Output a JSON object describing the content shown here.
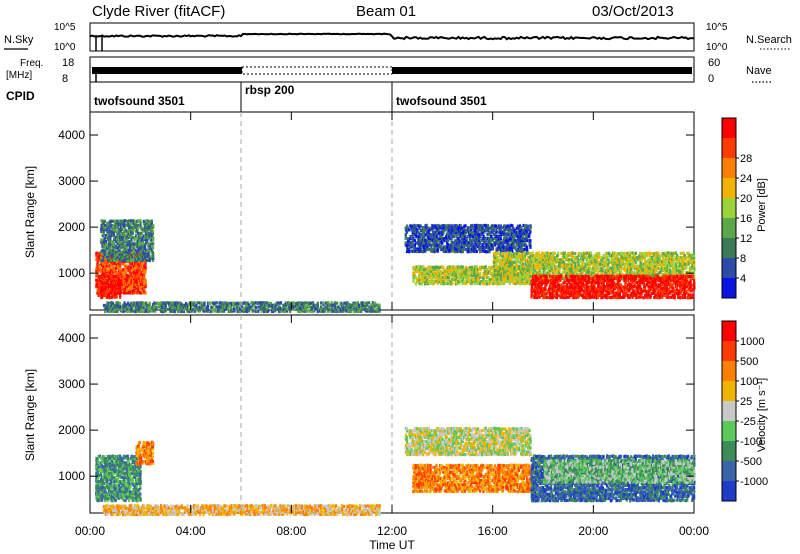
{
  "header": {
    "station": "Clyde River (fitACF)",
    "beam": "Beam 01",
    "date": "03/Oct/2013"
  },
  "noise_panel": {
    "left_label": "N.Sky",
    "right_label": "N.Search",
    "left_ticks": [
      "10^5",
      "10^0"
    ],
    "right_ticks": [
      "10^5",
      "10^0"
    ]
  },
  "freq_panel": {
    "left_label_line1": "Freq.",
    "left_label_line2": "[MHz]",
    "left_ticks": [
      "18",
      "8"
    ],
    "right_label": "Nave",
    "right_ticks": [
      "60",
      "0"
    ]
  },
  "cpid": {
    "label": "CPID",
    "segments": [
      {
        "name": "twofsound 3501",
        "start_hour": 0
      },
      {
        "name": "rbsp 200",
        "start_hour": 6
      },
      {
        "name": "twofsound 3501",
        "start_hour": 12
      }
    ]
  },
  "time_axis": {
    "label": "Time UT",
    "ticks": [
      "00:00",
      "04:00",
      "08:00",
      "12:00",
      "16:00",
      "20:00",
      "00:00"
    ],
    "hours": [
      0,
      4,
      8,
      12,
      16,
      20,
      24
    ]
  },
  "chart_data": [
    {
      "type": "heatmap",
      "name": "power",
      "ylabel": "Slant Range [km]",
      "yticks": [
        "1000",
        "2000",
        "3000",
        "4000"
      ],
      "ytick_values": [
        1000,
        2000,
        3000,
        4000
      ],
      "ylim": [
        200,
        4500
      ],
      "xlim": [
        0,
        24
      ],
      "colorbar_label": "Power [dB]",
      "colorbar_ticks": [
        "4",
        "8",
        "12",
        "16",
        "20",
        "24",
        "28"
      ],
      "colorbar_colors": [
        "#0a14e0",
        "#2c4aa8",
        "#3c7a5a",
        "#5aa84a",
        "#9ed23a",
        "#f0b400",
        "#ff8000",
        "#ff3c00",
        "#ff0000"
      ],
      "regions": [
        {
          "x": [
            0.2,
            2.2
          ],
          "y": [
            600,
            1500
          ],
          "level": 7
        },
        {
          "x": [
            0.3,
            1.2
          ],
          "y": [
            500,
            1000
          ],
          "level": 8
        },
        {
          "x": [
            0.4,
            2.5
          ],
          "y": [
            1300,
            2200
          ],
          "level": 2
        },
        {
          "x": [
            12.5,
            17.5
          ],
          "y": [
            1500,
            2100
          ],
          "level": 1
        },
        {
          "x": [
            12.8,
            17.5
          ],
          "y": [
            800,
            1200
          ],
          "level": 4
        },
        {
          "x": [
            16.0,
            24.0
          ],
          "y": [
            900,
            1500
          ],
          "level": 4
        },
        {
          "x": [
            17.5,
            24.0
          ],
          "y": [
            500,
            1000
          ],
          "level": 8
        },
        {
          "x": [
            0.5,
            11.5
          ],
          "y": [
            200,
            420
          ],
          "level": 2
        }
      ]
    },
    {
      "type": "heatmap",
      "name": "velocity",
      "ylabel": "Slant Range [km]",
      "yticks": [
        "1000",
        "2000",
        "3000",
        "4000"
      ],
      "ytick_values": [
        1000,
        2000,
        3000,
        4000
      ],
      "ylim": [
        200,
        4500
      ],
      "xlim": [
        0,
        24
      ],
      "colorbar_label": "Velocity [m s⁻¹]",
      "colorbar_ticks": [
        "1000",
        "500",
        "100",
        "25",
        "-25",
        "-100",
        "-500",
        "-1000"
      ],
      "colorbar_colors": [
        "#1e3cc8",
        "#3a64a8",
        "#3c8c5a",
        "#5cc85a",
        "#c8c8c8",
        "#f0b400",
        "#ff8000",
        "#ff3c00",
        "#ff0000"
      ],
      "regions": [
        {
          "x": [
            0.2,
            2.0
          ],
          "y": [
            500,
            1500
          ],
          "level": 2
        },
        {
          "x": [
            1.8,
            2.5
          ],
          "y": [
            1300,
            1800
          ],
          "level": 6
        },
        {
          "x": [
            12.5,
            17.5
          ],
          "y": [
            1500,
            2100
          ],
          "level": 4
        },
        {
          "x": [
            12.8,
            17.5
          ],
          "y": [
            700,
            1300
          ],
          "level": 6
        },
        {
          "x": [
            17.5,
            24.0
          ],
          "y": [
            500,
            1500
          ],
          "level": 1
        },
        {
          "x": [
            18.0,
            24.0
          ],
          "y": [
            900,
            1400
          ],
          "level": 3
        },
        {
          "x": [
            0.5,
            11.5
          ],
          "y": [
            200,
            420
          ],
          "level": 5
        }
      ]
    }
  ]
}
